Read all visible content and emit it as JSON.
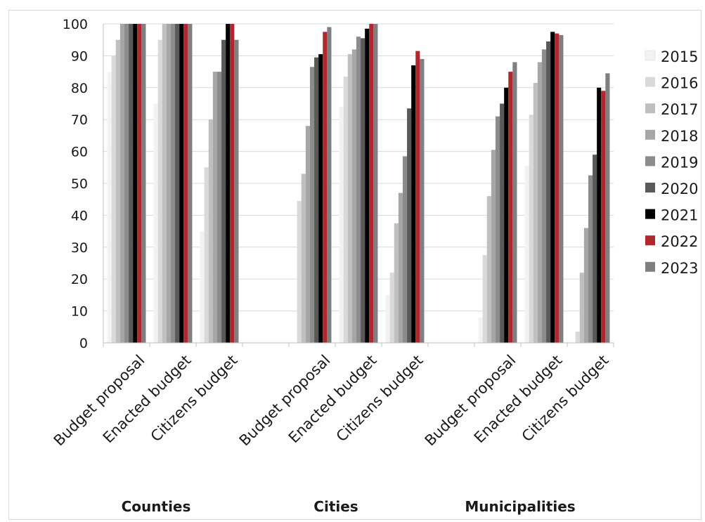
{
  "chart_data": {
    "type": "bar",
    "groups": [
      {
        "name": "Counties",
        "categories": [
          "Budget proposal",
          "Enacted budget",
          "Citizens budget"
        ]
      },
      {
        "name": "Cities",
        "categories": [
          "Budget proposal",
          "Enacted budget",
          "Citizens budget"
        ]
      },
      {
        "name": "Municipalities",
        "categories": [
          "Budget proposal",
          "Enacted budget",
          "Citizens budget"
        ]
      }
    ],
    "ylim": [
      0,
      100
    ],
    "yticks": [
      0,
      10,
      20,
      30,
      40,
      50,
      60,
      70,
      80,
      90,
      100
    ],
    "grid": true,
    "legend_position": "right",
    "series": [
      {
        "name": "2015",
        "color": "#f2f2f2",
        "values": [
          85,
          75,
          35,
          0,
          0,
          74,
          15,
          0,
          8,
          55.5,
          0
        ]
      },
      {
        "name": "2016",
        "color": "#d9d9d9",
        "values": [
          90,
          95,
          55,
          0,
          44.5,
          83.5,
          22,
          0,
          27.5,
          71.5,
          3.5
        ]
      },
      {
        "name": "2017",
        "color": "#bfbfbf",
        "values": [
          95,
          100,
          70,
          0,
          53,
          90.5,
          37.5,
          0,
          46,
          81.5,
          22
        ]
      },
      {
        "name": "2018",
        "color": "#a6a6a6",
        "values": [
          100,
          100,
          85,
          0,
          68,
          92,
          47,
          0,
          60.5,
          88,
          36
        ]
      },
      {
        "name": "2019",
        "color": "#8c8c8c",
        "values": [
          100,
          100,
          85,
          0,
          86.5,
          96,
          58.5,
          0,
          71,
          92,
          52.5
        ]
      },
      {
        "name": "2020",
        "color": "#595959",
        "values": [
          100,
          100,
          95,
          0,
          89.5,
          95.5,
          73.5,
          0,
          75,
          94.5,
          59
        ]
      },
      {
        "name": "2021",
        "color": "#000000",
        "values": [
          100,
          100,
          100,
          0,
          90.5,
          98.5,
          87,
          0,
          80,
          97.5,
          80
        ]
      },
      {
        "name": "2022",
        "color": "#b0282d",
        "values": [
          100,
          100,
          100,
          0,
          97.5,
          100,
          91.5,
          0,
          85,
          97,
          79
        ]
      },
      {
        "name": "2023",
        "color": "#7f7f7f",
        "values": [
          100,
          100,
          95,
          0,
          99,
          100,
          89,
          0,
          88,
          96.5,
          84.5
        ]
      }
    ],
    "slot_labels": [
      "Budget proposal",
      "Enacted budget",
      "Citizens budget",
      "",
      "Budget proposal",
      "Enacted budget",
      "Citizens budget",
      "",
      "Budget proposal",
      "Enacted budget",
      "Citizens budget"
    ]
  }
}
